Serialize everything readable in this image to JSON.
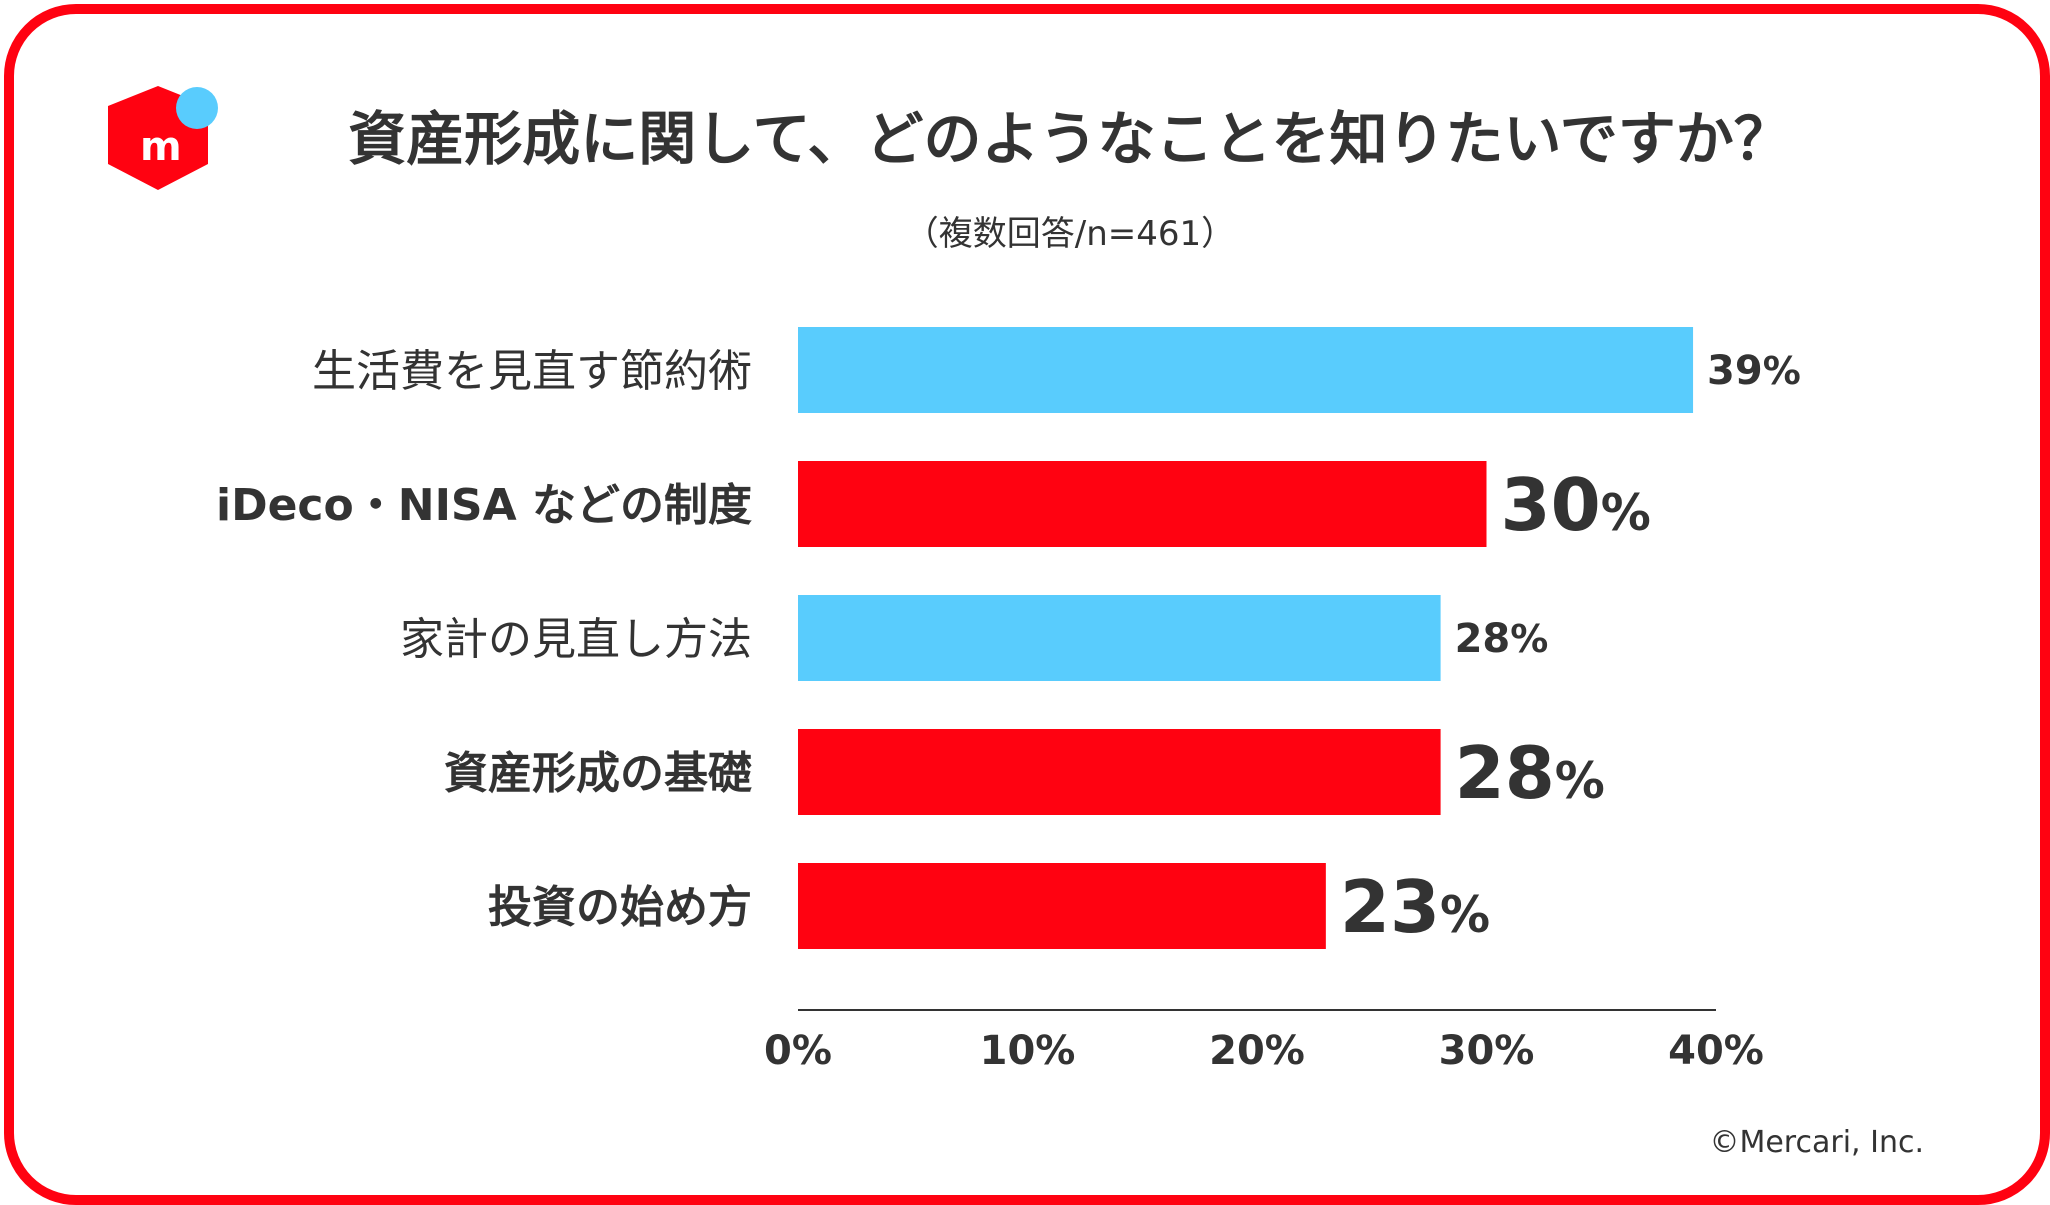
{
  "header": {
    "title": "資産形成に関して、どのようなことを知りたいですか？",
    "subtitle": "（複数回答/n=461）",
    "logo_icon": "mercari-logo-icon"
  },
  "footer": {
    "copyright": "©Mercari, Inc."
  },
  "colors": {
    "frame": "#ff0211",
    "highlight": "#ff0211",
    "normal": "#59ccfd",
    "text": "#333333",
    "logo_dot": "#59ccfd"
  },
  "chart_data": {
    "type": "bar",
    "orientation": "horizontal",
    "title": "資産形成に関して、どのようなことを知りたいですか？",
    "subtitle": "（複数回答/n=461）",
    "categories": [
      "生活費を見直す節約術",
      "iDeco・NISA などの制度",
      "家計の見直し方法",
      "資産形成の基礎",
      "投資の始め方"
    ],
    "values": [
      39,
      30,
      28,
      28,
      23
    ],
    "value_labels": [
      "39%",
      "30%",
      "28%",
      "28%",
      "23%"
    ],
    "highlighted": [
      false,
      true,
      false,
      true,
      true
    ],
    "xlim": [
      0,
      40
    ],
    "xticks": [
      0,
      10,
      20,
      30,
      40
    ],
    "xtick_labels": [
      "0%",
      "10%",
      "20%",
      "30%",
      "40%"
    ],
    "grid": false,
    "legend": "none"
  }
}
